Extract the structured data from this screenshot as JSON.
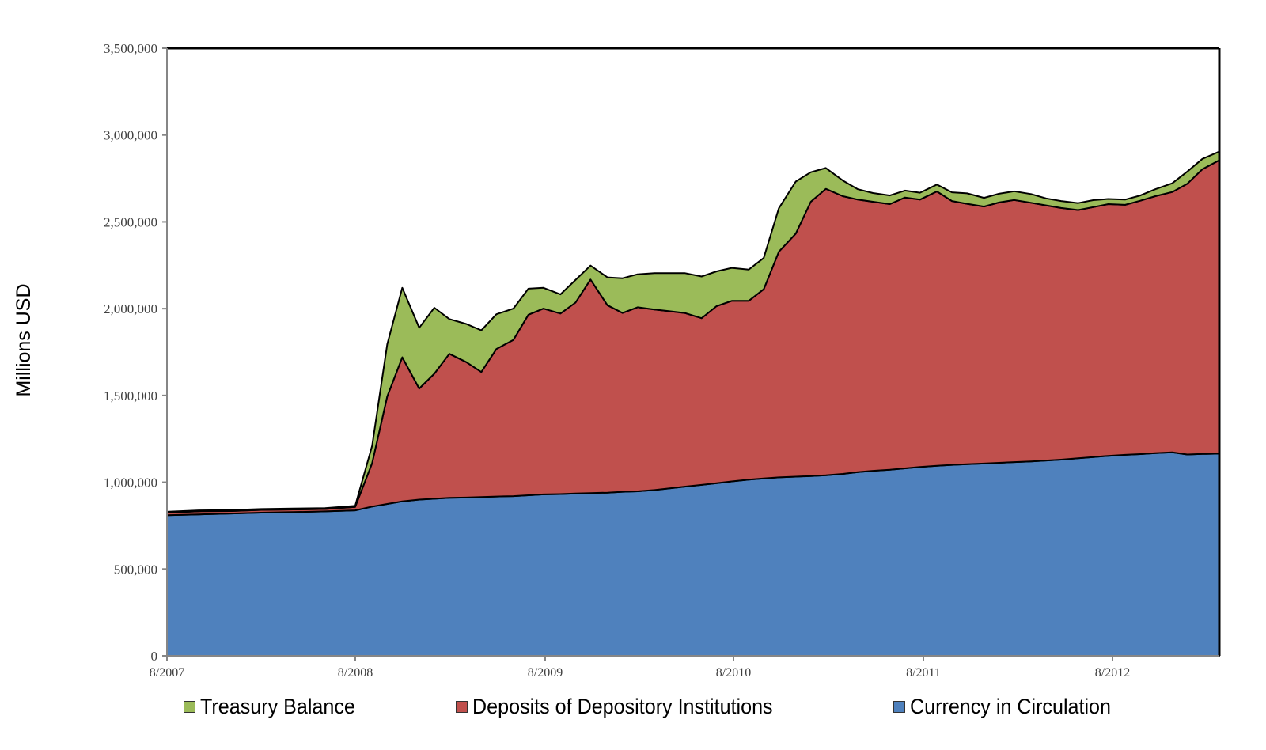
{
  "chart_data": {
    "type": "area",
    "stacked": true,
    "title": "",
    "xlabel": "",
    "ylabel": "Millions USD",
    "ylim": [
      0,
      3500000
    ],
    "yticks": [
      0,
      500000,
      1000000,
      1500000,
      2000000,
      2500000,
      3000000,
      3500000
    ],
    "ytick_labels": [
      "0",
      "500,000",
      "1,000,000",
      "1,500,000",
      "2,000,000",
      "2,500,000",
      "3,000,000",
      "3,500,000"
    ],
    "xtick_labels": [
      "8/2007",
      "8/2008",
      "8/2009",
      "8/2010",
      "8/2011",
      "8/2012"
    ],
    "xrange": [
      "8/2007",
      "3/2013"
    ],
    "grid": false,
    "legend_position": "bottom",
    "x": [
      2007.58,
      2007.75,
      2007.92,
      2008.08,
      2008.25,
      2008.42,
      2008.58,
      2008.67,
      2008.75,
      2008.83,
      2008.92,
      2009.0,
      2009.08,
      2009.17,
      2009.25,
      2009.33,
      2009.42,
      2009.5,
      2009.58,
      2009.67,
      2009.75,
      2009.83,
      2009.92,
      2010.0,
      2010.08,
      2010.17,
      2010.25,
      2010.33,
      2010.42,
      2010.5,
      2010.58,
      2010.67,
      2010.75,
      2010.83,
      2010.92,
      2011.0,
      2011.08,
      2011.17,
      2011.25,
      2011.33,
      2011.42,
      2011.5,
      2011.58,
      2011.67,
      2011.75,
      2011.83,
      2011.92,
      2012.0,
      2012.08,
      2012.17,
      2012.25,
      2012.33,
      2012.42,
      2012.5,
      2012.58,
      2012.67,
      2012.75,
      2012.83,
      2012.92,
      2013.0,
      2013.08,
      2013.17
    ],
    "series": [
      {
        "name": "Currency in Circulation",
        "color": "#4f81bd",
        "values": [
          810000,
          815000,
          820000,
          825000,
          828000,
          832000,
          838000,
          860000,
          875000,
          890000,
          900000,
          905000,
          910000,
          912000,
          915000,
          918000,
          920000,
          925000,
          930000,
          932000,
          935000,
          938000,
          940000,
          945000,
          948000,
          955000,
          965000,
          975000,
          985000,
          995000,
          1005000,
          1015000,
          1022000,
          1028000,
          1032000,
          1036000,
          1040000,
          1048000,
          1058000,
          1066000,
          1072000,
          1080000,
          1088000,
          1095000,
          1100000,
          1104000,
          1108000,
          1112000,
          1116000,
          1120000,
          1125000,
          1130000,
          1138000,
          1145000,
          1152000,
          1158000,
          1162000,
          1168000,
          1172000,
          1160000,
          1163000,
          1165000
        ]
      },
      {
        "name": "Deposits of Depository Institutions",
        "color": "#c0504d",
        "values": [
          15000,
          18000,
          14000,
          16000,
          15000,
          14000,
          20000,
          250000,
          620000,
          830000,
          640000,
          720000,
          830000,
          780000,
          720000,
          850000,
          900000,
          1040000,
          1070000,
          1040000,
          1100000,
          1230000,
          1080000,
          1030000,
          1060000,
          1040000,
          1020000,
          1000000,
          960000,
          1020000,
          1040000,
          1030000,
          1090000,
          1300000,
          1400000,
          1580000,
          1650000,
          1600000,
          1570000,
          1550000,
          1530000,
          1560000,
          1540000,
          1580000,
          1520000,
          1500000,
          1480000,
          1500000,
          1510000,
          1490000,
          1470000,
          1450000,
          1430000,
          1440000,
          1450000,
          1440000,
          1460000,
          1480000,
          1500000,
          1560000,
          1640000,
          1690000
        ]
      },
      {
        "name": "Treasury Balance",
        "color": "#9bbb59",
        "values": [
          5000,
          5000,
          6000,
          5000,
          6000,
          5000,
          6000,
          100000,
          300000,
          400000,
          350000,
          380000,
          200000,
          220000,
          240000,
          200000,
          180000,
          150000,
          120000,
          110000,
          130000,
          80000,
          160000,
          200000,
          190000,
          210000,
          220000,
          230000,
          240000,
          200000,
          190000,
          180000,
          180000,
          250000,
          300000,
          170000,
          120000,
          90000,
          60000,
          50000,
          50000,
          40000,
          40000,
          40000,
          50000,
          60000,
          50000,
          50000,
          50000,
          50000,
          40000,
          40000,
          40000,
          40000,
          30000,
          30000,
          30000,
          40000,
          50000,
          70000,
          60000,
          50000
        ]
      }
    ],
    "legend": [
      "Treasury Balance",
      "Deposits of Depository Institutions",
      "Currency in Circulation"
    ]
  },
  "legend": {
    "treasury": {
      "label": "Treasury Balance",
      "color": "#9bbb59"
    },
    "deposits": {
      "label": "Deposits of Depository Institutions",
      "color": "#c0504d"
    },
    "currency": {
      "label": "Currency in Circulation",
      "color": "#4f81bd"
    }
  },
  "axis": {
    "ylabel": "Millions USD",
    "y": [
      "0",
      "500,000",
      "1,000,000",
      "1,500,000",
      "2,000,000",
      "2,500,000",
      "3,000,000",
      "3,500,000"
    ],
    "x": [
      "8/2007",
      "8/2008",
      "8/2009",
      "8/2010",
      "8/2011",
      "8/2012"
    ]
  }
}
